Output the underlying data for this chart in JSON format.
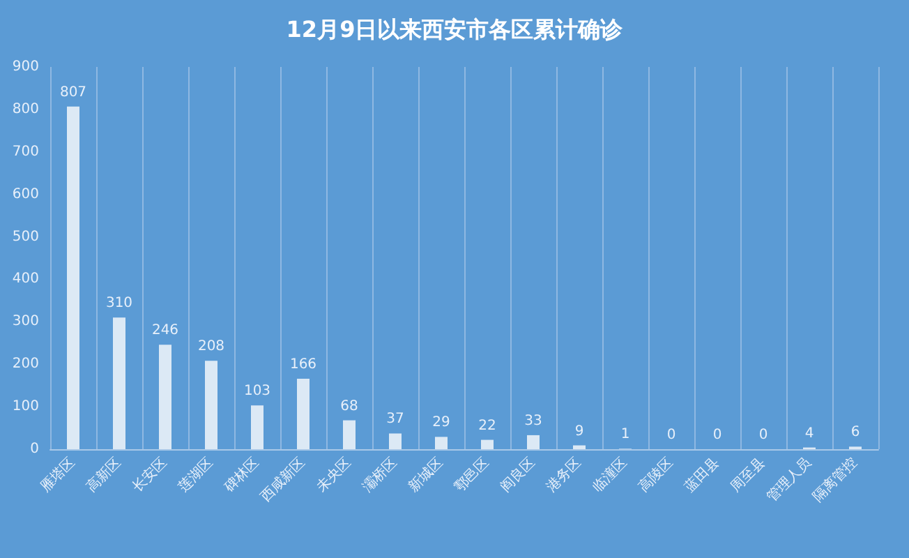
{
  "chart_data": {
    "type": "bar",
    "title": "12月9日以来西安市各区累计确诊",
    "categories": [
      "雁塔区",
      "高新区",
      "长安区",
      "莲湖区",
      "碑林区",
      "西咸新区",
      "未央区",
      "灞桥区",
      "新城区",
      "鄠邑区",
      "阎良区",
      "港务区",
      "临潼区",
      "高陵区",
      "蓝田县",
      "周至县",
      "管理人员",
      "隔离管控"
    ],
    "values": [
      807,
      310,
      246,
      208,
      103,
      166,
      68,
      37,
      29,
      22,
      33,
      9,
      1,
      0,
      0,
      0,
      4,
      6
    ],
    "color": "#dce9f5",
    "ylim": [
      0,
      900
    ],
    "yticks": [
      0,
      100,
      200,
      300,
      400,
      500,
      600,
      700,
      800,
      900
    ],
    "grid": "x",
    "data_labels": true
  }
}
